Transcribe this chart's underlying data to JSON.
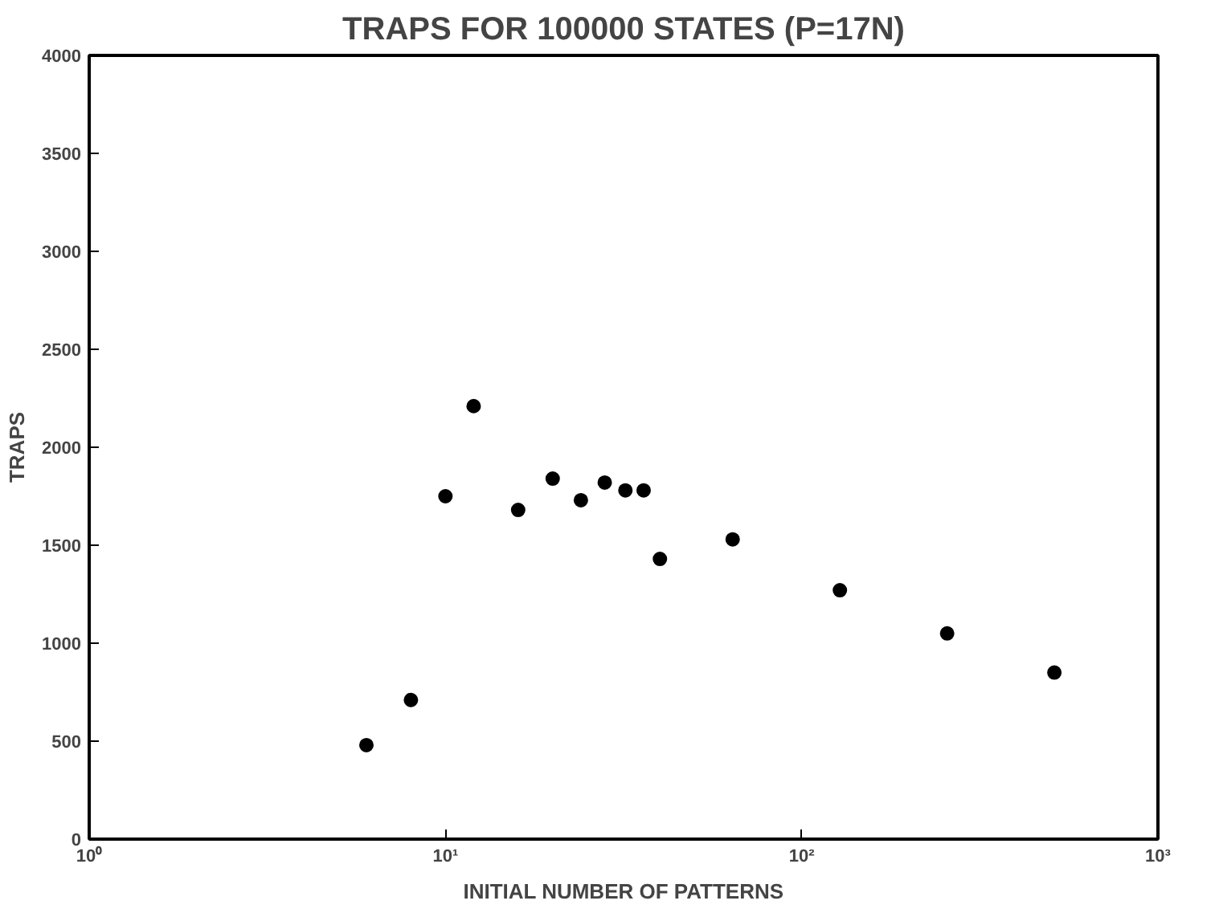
{
  "chart_data": {
    "type": "scatter",
    "title": "TRAPS FOR 100000 STATES (P=17N)",
    "xlabel": "INITIAL NUMBER OF PATTERNS",
    "ylabel": "TRAPS",
    "log": "x",
    "grid": false,
    "marker": "circle",
    "xlim": [
      1,
      1000
    ],
    "xticks": [
      {
        "value": 1,
        "label": "10⁰"
      },
      {
        "value": 10,
        "label": "10¹"
      },
      {
        "value": 100,
        "label": "10²"
      },
      {
        "value": 1000,
        "label": "10³"
      }
    ],
    "ylim": [
      0,
      4000
    ],
    "yticks": [
      0,
      500,
      1000,
      1500,
      2000,
      2500,
      3000,
      3500,
      4000
    ],
    "series": [
      {
        "color": "#000000",
        "x": [
          6,
          8,
          10,
          12,
          16,
          20,
          24,
          28,
          32,
          36,
          40,
          64,
          128,
          256,
          512
        ],
        "values": [
          480,
          710,
          1750,
          2210,
          1680,
          1840,
          1730,
          1820,
          1780,
          1780,
          1430,
          1530,
          1270,
          1050,
          850
        ]
      }
    ]
  }
}
